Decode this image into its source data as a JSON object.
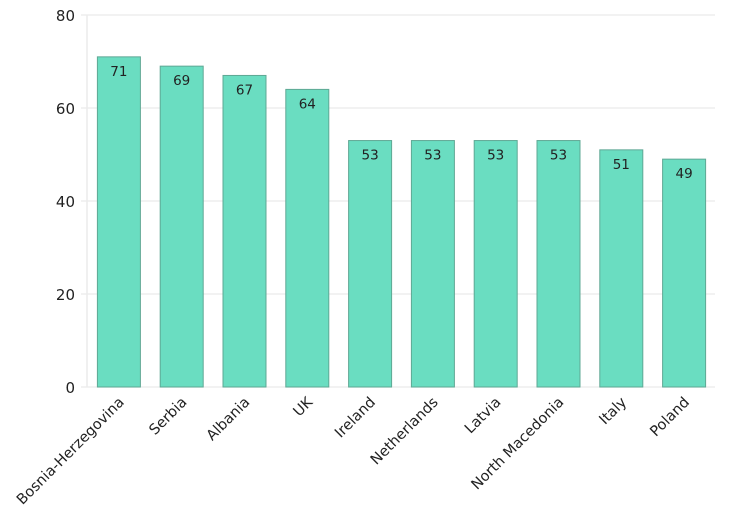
{
  "chart_data": {
    "type": "bar",
    "title": "",
    "xlabel": "",
    "ylabel": "",
    "categories": [
      "Bosnia-Herzegovina",
      "Serbia",
      "Albania",
      "UK",
      "Ireland",
      "Netherlands",
      "Latvia",
      "North Macedonia",
      "Italy",
      "Poland"
    ],
    "values": [
      71,
      69,
      67,
      64,
      53,
      53,
      53,
      53,
      51,
      49
    ],
    "ylim": [
      0,
      80
    ],
    "yticks": [
      0,
      20,
      40,
      60,
      80
    ],
    "grid": true,
    "legend": null,
    "data_labels": true,
    "colors": {
      "bar_fill": "#6ADDC1",
      "bar_stroke": "#5FA894",
      "grid": "#ebebeb",
      "text": "#222222"
    }
  }
}
